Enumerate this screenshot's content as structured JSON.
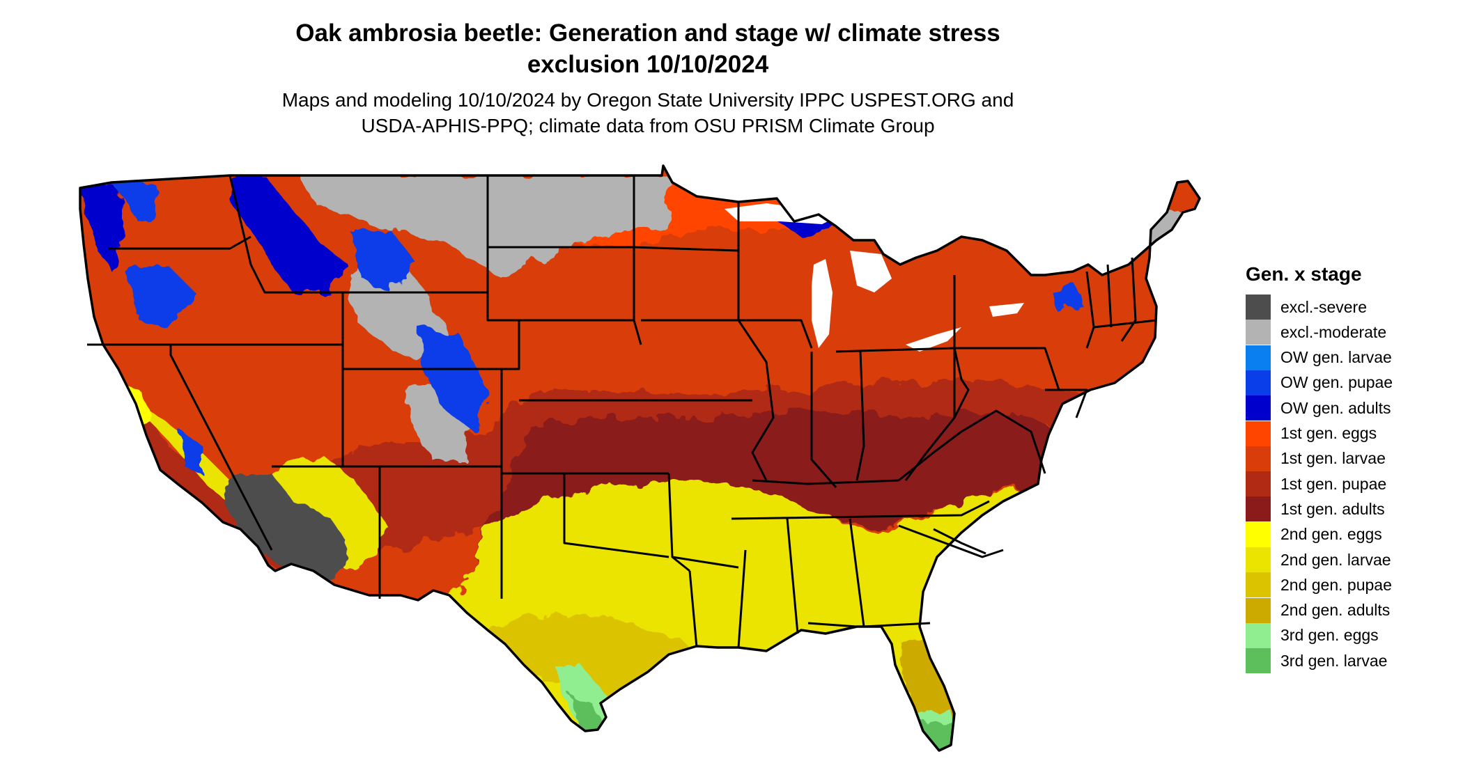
{
  "title": {
    "line1": "Oak ambrosia beetle: Generation and stage w/ climate stress",
    "line2": "exclusion 10/10/2024"
  },
  "subtitle": {
    "line1": "Maps and modeling 10/10/2024 by Oregon State University IPPC USPEST.ORG and",
    "line2": "USDA-APHIS-PPQ; climate data from OSU PRISM Climate Group"
  },
  "legend": {
    "title": "Gen. x stage",
    "items": [
      {
        "label": "excl.-severe",
        "color": "#4d4d4d"
      },
      {
        "label": "excl.-moderate",
        "color": "#b3b3b3"
      },
      {
        "label": "OW gen. larvae",
        "color": "#0a80f0"
      },
      {
        "label": "OW gen. pupae",
        "color": "#0a3ee8"
      },
      {
        "label": "OW gen. adults",
        "color": "#0000cc"
      },
      {
        "label": "1st gen. eggs",
        "color": "#ff4500"
      },
      {
        "label": "1st gen. larvae",
        "color": "#d93d0a"
      },
      {
        "label": "1st gen. pupae",
        "color": "#b02a14"
      },
      {
        "label": "1st gen. adults",
        "color": "#8b1a1a"
      },
      {
        "label": "2nd gen. eggs",
        "color": "#ffff00"
      },
      {
        "label": "2nd gen. larvae",
        "color": "#ebe300"
      },
      {
        "label": "2nd gen. pupae",
        "color": "#dcc300"
      },
      {
        "label": "2nd gen. adults",
        "color": "#ccaa00"
      },
      {
        "label": "3rd gen. eggs",
        "color": "#90ee90"
      },
      {
        "label": "3rd gen. larvae",
        "color": "#5cbf5c"
      }
    ]
  }
}
